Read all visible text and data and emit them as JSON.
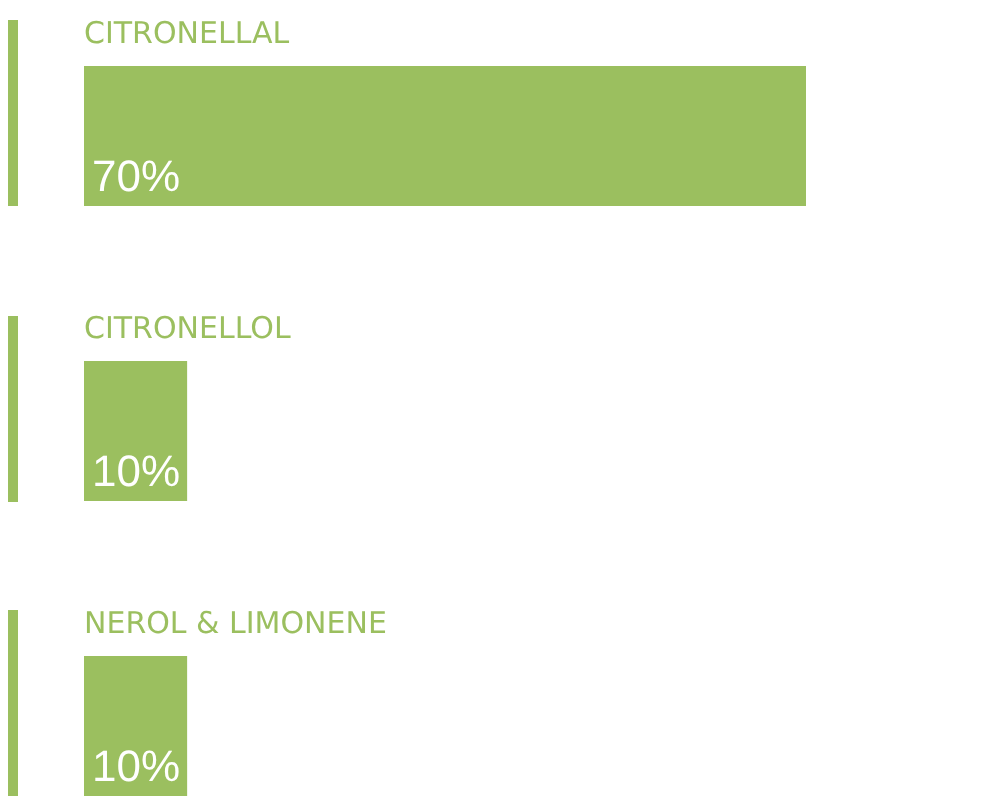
{
  "chart_data": {
    "type": "bar",
    "orientation": "horizontal",
    "categories": [
      "CITRONELLAL",
      "CITRONELLOL",
      "NEROL & LIMONENE"
    ],
    "values": [
      70,
      10,
      10
    ],
    "value_labels": [
      "70%",
      "10%",
      "10%"
    ],
    "color": "#9bbf5f"
  }
}
